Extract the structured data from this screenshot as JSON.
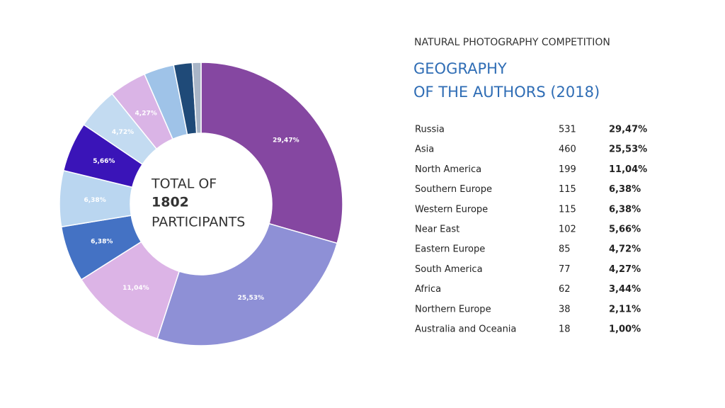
{
  "chart_data": {
    "type": "donut",
    "supertitle": "NATURAL PHOTOGRAPHY COMPETITION",
    "title": [
      "GEOGRAPHY",
      "OF THE AUTHORS (2018)"
    ],
    "center_text": {
      "before": "TOTAL OF",
      "total": 1802,
      "after": "PARTICIPANTS"
    },
    "categories": [
      "Russia",
      "Asia",
      "North America",
      "Southern Europe",
      "Western Europe",
      "Near East",
      "Eastern Europe",
      "South America",
      "Africa",
      "Northern Europe",
      "Australia and Oceania"
    ],
    "counts": [
      531,
      460,
      199,
      115,
      115,
      102,
      85,
      77,
      62,
      38,
      18
    ],
    "values": [
      29.47,
      25.53,
      11.04,
      6.38,
      6.38,
      5.66,
      4.72,
      4.27,
      3.44,
      2.11,
      1.0
    ],
    "value_labels": [
      "29,47%",
      "25,53%",
      "11,04%",
      "6,38%",
      "6,38%",
      "5,66%",
      "4,72%",
      "4,27%",
      "3,44%",
      "2,11%",
      "1,00%"
    ],
    "colors": [
      "#8547a1",
      "#8e90d6",
      "#dcb4e6",
      "#4472c4",
      "#bad6f0",
      "#3a14b8",
      "#c3dbf1",
      "#dab4e6",
      "#9fc3e8",
      "#1f4a78",
      "#a8b5c7"
    ]
  }
}
